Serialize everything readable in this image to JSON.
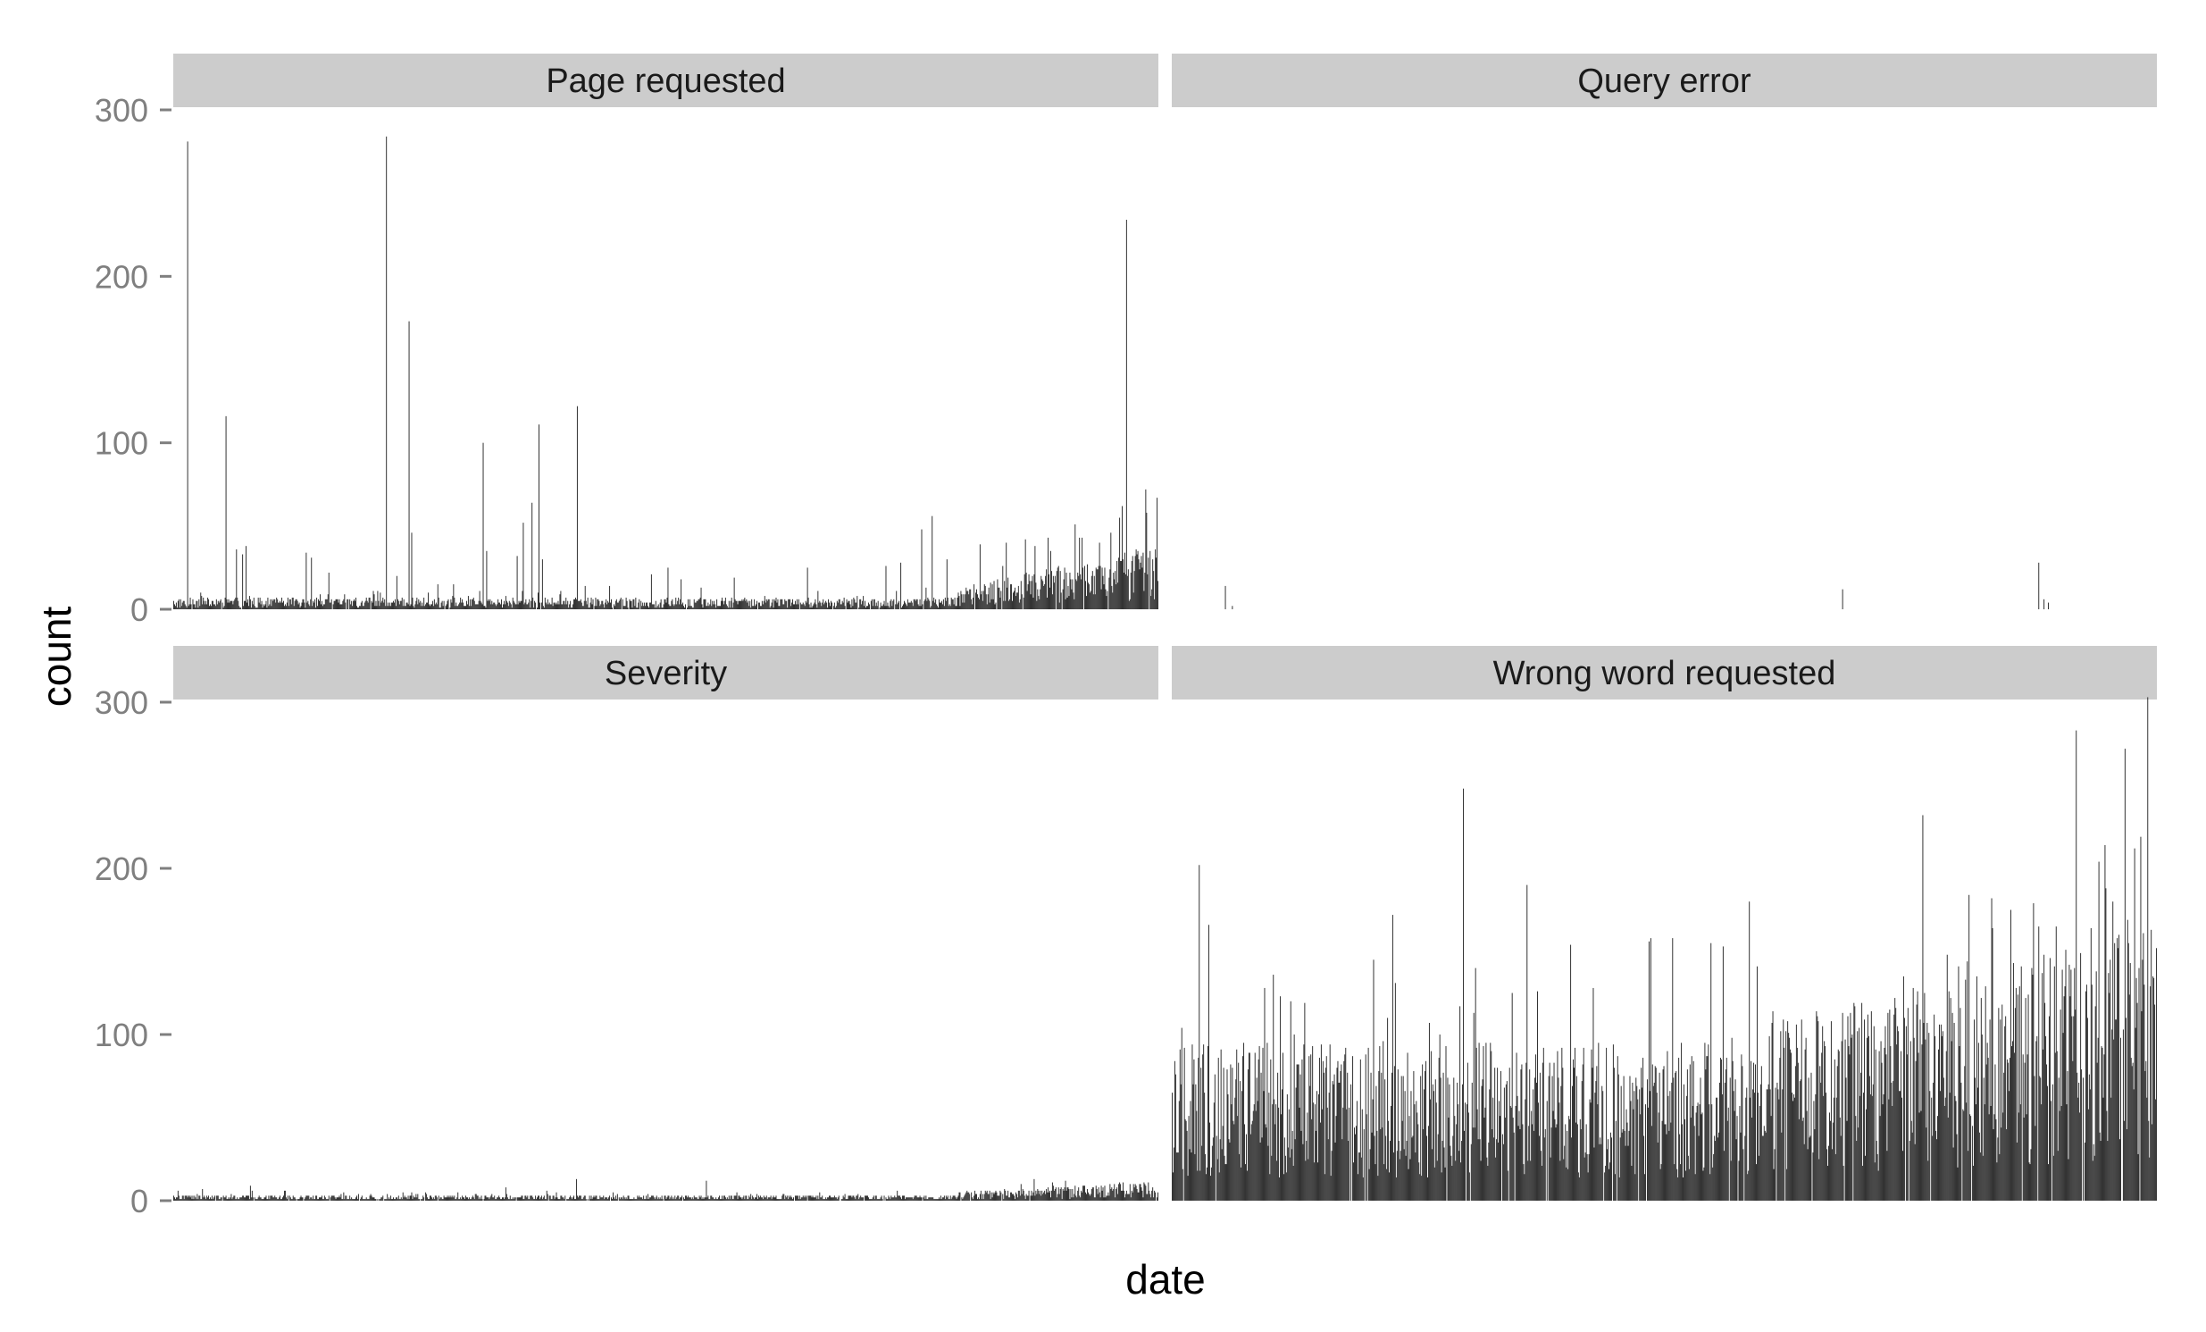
{
  "chart_data": {
    "type": "bar",
    "layout": "facet_wrap 2x2",
    "xlabel": "date",
    "ylabel": "count",
    "ylim": [
      0,
      300
    ],
    "yticks": [
      0,
      100,
      200,
      300
    ],
    "x_tick_labels_shown": false,
    "grid": false,
    "colors": {
      "bar": "#333333",
      "strip": "#cccccc",
      "tick_text": "#7f7f7f",
      "tick": "#7f7f7f"
    },
    "panels": [
      {
        "label": "Page requested",
        "baseline_level": 4,
        "spikes": [
          [
            16,
            281
          ],
          [
            60,
            116
          ],
          [
            72,
            36
          ],
          [
            79,
            33
          ],
          [
            83,
            38
          ],
          [
            152,
            34
          ],
          [
            158,
            31
          ],
          [
            178,
            22
          ],
          [
            244,
            284
          ],
          [
            256,
            20
          ],
          [
            270,
            173
          ],
          [
            273,
            46
          ],
          [
            321,
            15
          ],
          [
            355,
            100
          ],
          [
            359,
            35
          ],
          [
            394,
            32
          ],
          [
            401,
            52
          ],
          [
            411,
            64
          ],
          [
            419,
            111
          ],
          [
            423,
            30
          ],
          [
            463,
            122
          ],
          [
            472,
            14
          ],
          [
            500,
            14
          ],
          [
            548,
            21
          ],
          [
            567,
            25
          ],
          [
            582,
            18
          ],
          [
            643,
            19
          ],
          [
            727,
            25
          ],
          [
            817,
            26
          ],
          [
            834,
            28
          ],
          [
            858,
            48
          ],
          [
            870,
            56
          ],
          [
            887,
            30
          ],
          [
            925,
            39
          ],
          [
            955,
            40
          ],
          [
            977,
            42
          ],
          [
            988,
            38
          ],
          [
            1003,
            43
          ],
          [
            1042,
            43
          ],
          [
            1062,
            40
          ],
          [
            1075,
            46
          ],
          [
            1085,
            55
          ],
          [
            1093,
            234
          ],
          [
            1104,
            36
          ],
          [
            1111,
            25
          ]
        ],
        "ramp": {
          "from": 900,
          "to": 1130,
          "start": 8,
          "end": 22
        }
      },
      {
        "label": "Query error",
        "baseline_level": 0,
        "spikes": [
          [
            61,
            14
          ],
          [
            69,
            2
          ],
          [
            769,
            12
          ],
          [
            994,
            28
          ],
          [
            1000,
            6
          ],
          [
            1005,
            4
          ]
        ]
      },
      {
        "label": "Severity",
        "baseline_level": 2,
        "spikes": [
          [
            5,
            6
          ],
          [
            33,
            7
          ],
          [
            88,
            9
          ],
          [
            381,
            8
          ],
          [
            462,
            13
          ],
          [
            611,
            12
          ],
          [
            830,
            6
          ],
          [
            972,
            10
          ],
          [
            1023,
            12
          ],
          [
            1108,
            10
          ]
        ],
        "ramp": {
          "from": 900,
          "to": 1130,
          "start": 3,
          "end": 7
        }
      },
      {
        "label": "Wrong word requested",
        "baseline_level": 55,
        "spikes": [
          [
            0,
            65
          ],
          [
            9,
            91
          ],
          [
            24,
            70
          ],
          [
            53,
            86
          ],
          [
            67,
            82
          ],
          [
            136,
            120
          ],
          [
            152,
            119
          ],
          [
            253,
            172
          ],
          [
            295,
            107
          ],
          [
            334,
            248
          ],
          [
            348,
            140
          ],
          [
            407,
            190
          ],
          [
            419,
            126
          ],
          [
            457,
            154
          ],
          [
            642,
            98
          ],
          [
            689,
            114
          ],
          [
            791,
            119
          ],
          [
            839,
            135
          ],
          [
            889,
            148
          ],
          [
            914,
            184
          ],
          [
            940,
            182
          ],
          [
            994,
            165
          ],
          [
            1054,
            164
          ],
          [
            1096,
            169
          ],
          [
            1107,
            119
          ]
        ],
        "ramp": {
          "from": 660,
          "to": 1130,
          "start": 60,
          "end": 95
        }
      }
    ]
  }
}
